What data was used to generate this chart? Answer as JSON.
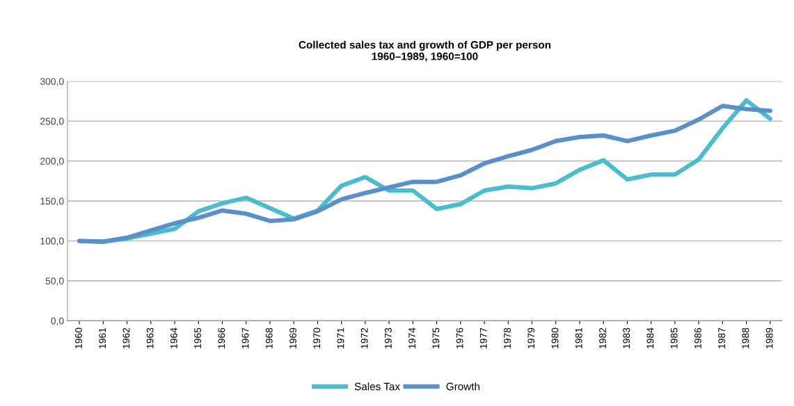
{
  "chart_data": {
    "type": "line",
    "title": "Collected sales tax and growth of GDP per person\n1960–1989, 1960=100",
    "categories": [
      "1960",
      "1961",
      "1962",
      "1963",
      "1964",
      "1965",
      "1966",
      "1967",
      "1968",
      "1969",
      "1970",
      "1971",
      "1972",
      "1973",
      "1974",
      "1975",
      "1976",
      "1977",
      "1978",
      "1979",
      "1980",
      "1981",
      "1982",
      "1983",
      "1984",
      "1985",
      "1986",
      "1987",
      "1988",
      "1989"
    ],
    "series": [
      {
        "name": "Sales Tax",
        "color": "#4bbcd0",
        "values": [
          100,
          99,
          103,
          109,
          115,
          137,
          147,
          154,
          141,
          128,
          138,
          169,
          180,
          163,
          163,
          140,
          146,
          163,
          168,
          166,
          172,
          189,
          201,
          177,
          183,
          183,
          202,
          241,
          276,
          253
        ]
      },
      {
        "name": "Growth",
        "color": "#5b8fc8",
        "values": [
          100,
          99,
          104,
          113,
          122,
          129,
          138,
          134,
          125,
          127,
          137,
          152,
          160,
          167,
          174,
          174,
          182,
          197,
          206,
          214,
          225,
          230,
          232,
          225,
          232,
          238,
          252,
          269,
          265,
          263
        ]
      }
    ],
    "ylim": [
      0,
      300
    ],
    "yticks": [
      {
        "value": 0,
        "label": "0,0"
      },
      {
        "value": 50,
        "label": "50,0"
      },
      {
        "value": 100,
        "label": "100,0"
      },
      {
        "value": 150,
        "label": "150,0"
      },
      {
        "value": 200,
        "label": "200,0"
      },
      {
        "value": 250,
        "label": "250,0"
      },
      {
        "value": 300,
        "label": "300,0"
      }
    ],
    "grid": "y",
    "legend": "bottom",
    "marker": "none",
    "line_style": "solid"
  }
}
